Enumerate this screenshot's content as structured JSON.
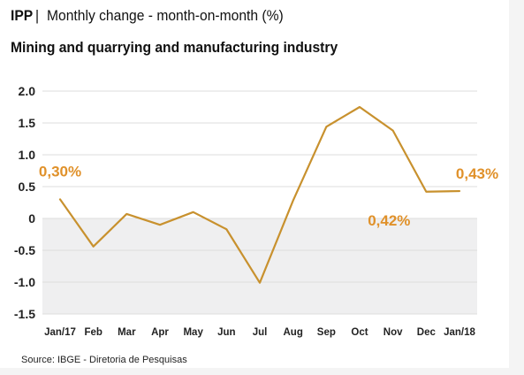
{
  "header": {
    "title_bold": "IPP",
    "title_sep": "|",
    "title_rest": "Monthly change  - month-on-month (%)",
    "subtitle": "Mining and quarrying and manufacturing industry"
  },
  "footer": {
    "source": "Source: IBGE - Diretoria de Pesquisas"
  },
  "colors": {
    "line": "#c8912e",
    "label": "#e0912a",
    "negative_band": "#efeff0",
    "grid": "#dcdcdc"
  },
  "chart_data": {
    "type": "line",
    "categories": [
      "Jan/17",
      "Feb",
      "Mar",
      "Apr",
      "May",
      "Jun",
      "Jul",
      "Aug",
      "Sep",
      "Oct",
      "Nov",
      "Dec",
      "Jan/18"
    ],
    "series": [
      {
        "values": [
          0.3,
          -0.44,
          0.07,
          -0.1,
          0.1,
          -0.17,
          -1.01,
          0.28,
          1.44,
          1.75,
          1.38,
          0.42,
          0.43
        ]
      }
    ],
    "yticks": [
      "2.0",
      "1.5",
      "1.0",
      "0.5",
      "0",
      "-0.5",
      "-1.0",
      "-1.5"
    ],
    "ytick_values": [
      2.0,
      1.5,
      1.0,
      0.5,
      0,
      -0.5,
      -1.0,
      -1.5
    ],
    "ylim": [
      -1.5,
      2.0
    ],
    "grid": true,
    "negative_region_shaded": true,
    "annotations": [
      {
        "index": 0,
        "text": "0,30%"
      },
      {
        "index": 11,
        "text": "0,42%"
      },
      {
        "index": 12,
        "text": "0,43%"
      }
    ]
  }
}
